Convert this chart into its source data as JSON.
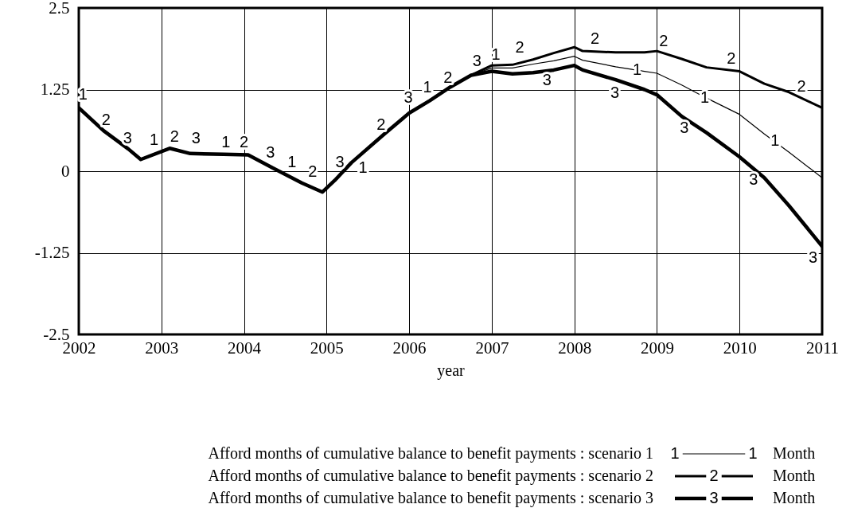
{
  "chart_data": {
    "type": "line",
    "xlabel": "year",
    "x": [
      2002,
      2002.3,
      2002.6,
      2002.75,
      2003.1,
      2003.35,
      2003.75,
      2004.05,
      2004.35,
      2004.7,
      2004.95,
      2005.1,
      2005.3,
      2005.7,
      2006.0,
      2006.25,
      2006.5,
      2006.75,
      2007.0,
      2007.25,
      2007.5,
      2007.75,
      2008.0,
      2008.1,
      2008.5,
      2008.85,
      2009.0,
      2009.3,
      2009.6,
      2010.0,
      2010.3,
      2010.6,
      2011.0
    ],
    "series": [
      {
        "name": "Afford months of cumulative balance to benefit payments : scenario 1",
        "color": "#000000",
        "values": [
          0.97,
          0.62,
          0.34,
          0.18,
          0.35,
          0.27,
          0.26,
          0.25,
          0.05,
          -0.18,
          -0.32,
          -0.14,
          0.13,
          0.57,
          0.89,
          1.08,
          1.29,
          1.47,
          1.58,
          1.58,
          1.64,
          1.69,
          1.76,
          1.7,
          1.6,
          1.53,
          1.5,
          1.32,
          1.12,
          0.87,
          0.57,
          0.29,
          -0.1
        ]
      },
      {
        "name": "Afford months of cumulative balance to benefit payments : scenario 2",
        "color": "#000000",
        "values": [
          0.97,
          0.62,
          0.34,
          0.18,
          0.35,
          0.27,
          0.26,
          0.25,
          0.05,
          -0.18,
          -0.32,
          -0.14,
          0.13,
          0.57,
          0.89,
          1.08,
          1.29,
          1.47,
          1.62,
          1.63,
          1.71,
          1.81,
          1.9,
          1.84,
          1.82,
          1.82,
          1.84,
          1.72,
          1.59,
          1.53,
          1.34,
          1.21,
          0.97
        ]
      },
      {
        "name": "Afford months of cumulative balance to benefit payments : scenario 3",
        "color": "#000000",
        "values": [
          0.97,
          0.62,
          0.34,
          0.18,
          0.35,
          0.27,
          0.26,
          0.25,
          0.05,
          -0.18,
          -0.32,
          -0.14,
          0.13,
          0.57,
          0.89,
          1.08,
          1.29,
          1.47,
          1.53,
          1.49,
          1.51,
          1.55,
          1.62,
          1.55,
          1.4,
          1.25,
          1.17,
          0.84,
          0.59,
          0.22,
          -0.1,
          -0.53,
          -1.15
        ]
      }
    ],
    "xlim": [
      2002,
      2011
    ],
    "xticks": [
      2002,
      2003,
      2004,
      2005,
      2006,
      2007,
      2008,
      2009,
      2010,
      2011
    ],
    "ylim": [
      -2.5,
      2.5
    ],
    "yticks": [
      -2.5,
      -1.25,
      0,
      1.25,
      2.5
    ],
    "grid": true,
    "legend": "bottom",
    "line_style": "solid",
    "annotations": [
      {
        "text": "1",
        "x": 2002.05,
        "y": 0.97
      },
      {
        "text": "2",
        "x": 2002.33,
        "y": 0.59
      },
      {
        "text": "3",
        "x": 2002.59,
        "y": 0.3
      },
      {
        "text": "1",
        "x": 2002.91,
        "y": 0.28
      },
      {
        "text": "2",
        "x": 2003.16,
        "y": 0.33
      },
      {
        "text": "3",
        "x": 2003.42,
        "y": 0.3
      },
      {
        "text": "1",
        "x": 2003.78,
        "y": 0.24
      },
      {
        "text": "2",
        "x": 2004.0,
        "y": 0.24
      },
      {
        "text": "3",
        "x": 2004.32,
        "y": 0.09
      },
      {
        "text": "1",
        "x": 2004.58,
        "y": -0.06
      },
      {
        "text": "2",
        "x": 2004.83,
        "y": -0.21
      },
      {
        "text": "3",
        "x": 2005.16,
        "y": -0.06
      },
      {
        "text": "1",
        "x": 2005.44,
        "y": 0.23
      },
      {
        "text": "2",
        "x": 2005.66,
        "y": 0.51
      },
      {
        "text": "3",
        "x": 2005.99,
        "y": 0.93
      },
      {
        "text": "1",
        "x": 2006.22,
        "y": 1.08
      },
      {
        "text": "2",
        "x": 2006.47,
        "y": 1.23
      },
      {
        "text": "3",
        "x": 2006.82,
        "y": 1.49
      },
      {
        "text": "1",
        "x": 2007.05,
        "y": 1.59
      },
      {
        "text": "2",
        "x": 2007.34,
        "y": 1.7
      },
      {
        "text": "3",
        "x": 2007.67,
        "y": 1.57
      },
      {
        "text": "2",
        "x": 2008.25,
        "y": 1.83
      },
      {
        "text": "3",
        "x": 2008.49,
        "y": 1.38
      },
      {
        "text": "1",
        "x": 2008.76,
        "y": 1.55
      },
      {
        "text": "2",
        "x": 2009.08,
        "y": 1.79
      },
      {
        "text": "3",
        "x": 2009.33,
        "y": 0.84
      },
      {
        "text": "1",
        "x": 2009.58,
        "y": 1.12
      },
      {
        "text": "2",
        "x": 2009.9,
        "y": 1.53
      },
      {
        "text": "3",
        "x": 2010.17,
        "y": 0.05
      },
      {
        "text": "1",
        "x": 2010.43,
        "y": 0.46
      },
      {
        "text": "2",
        "x": 2010.75,
        "y": 1.1
      },
      {
        "text": "3",
        "x": 2011.0,
        "y": -1.15
      },
      "1",
      "2",
      "3",
      "Month",
      "Month",
      "Month"
    ]
  }
}
